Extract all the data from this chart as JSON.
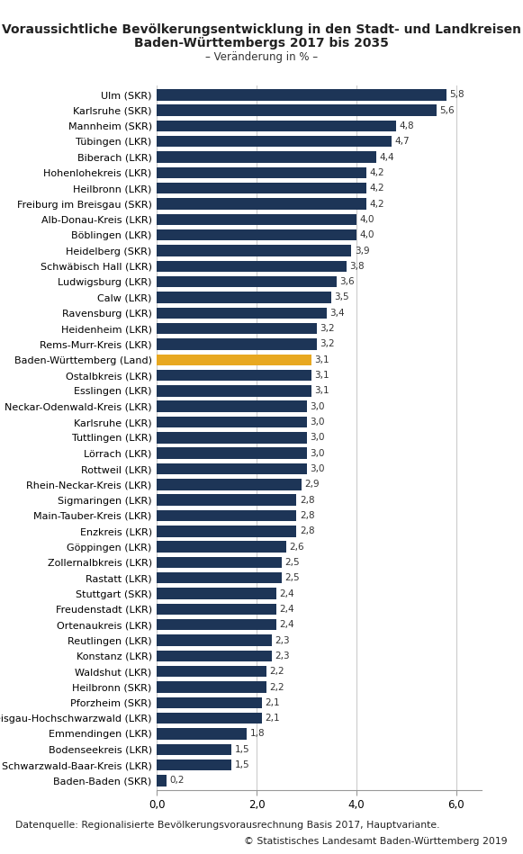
{
  "title_line1": "Voraussichtliche Bevölkerungsentwicklung in den Stadt- und Landkreisen",
  "title_line2": "Baden-Württembergs 2017 bis 2035",
  "subtitle": "– Veränderung in % –",
  "categories": [
    "Ulm (SKR)",
    "Karlsruhe (SKR)",
    "Mannheim (SKR)",
    "Tübingen (LKR)",
    "Biberach (LKR)",
    "Hohenlohekreis (LKR)",
    "Heilbronn (LKR)",
    "Freiburg im Breisgau (SKR)",
    "Alb-Donau-Kreis (LKR)",
    "Böblingen (LKR)",
    "Heidelberg (SKR)",
    "Schwäbisch Hall (LKR)",
    "Ludwigsburg (LKR)",
    "Calw (LKR)",
    "Ravensburg (LKR)",
    "Heidenheim (LKR)",
    "Rems-Murr-Kreis (LKR)",
    "Baden-Württemberg (Land)",
    "Ostalbkreis (LKR)",
    "Esslingen (LKR)",
    "Neckar-Odenwald-Kreis (LKR)",
    "Karlsruhe (LKR)",
    "Tuttlingen (LKR)",
    "Lörrach (LKR)",
    "Rottweil (LKR)",
    "Rhein-Neckar-Kreis (LKR)",
    "Sigmaringen (LKR)",
    "Main-Tauber-Kreis (LKR)",
    "Enzkreis (LKR)",
    "Göppingen (LKR)",
    "Zollernalbkreis (LKR)",
    "Rastatt (LKR)",
    "Stuttgart (SKR)",
    "Freudenstadt (LKR)",
    "Ortenaukreis (LKR)",
    "Reutlingen (LKR)",
    "Konstanz (LKR)",
    "Waldshut (LKR)",
    "Heilbronn (SKR)",
    "Pforzheim (SKR)",
    "Breisgau-Hochschwarzwald (LKR)",
    "Emmendingen (LKR)",
    "Bodenseekreis (LKR)",
    "Schwarzwald-Baar-Kreis (LKR)",
    "Baden-Baden (SKR)"
  ],
  "values": [
    5.8,
    5.6,
    4.8,
    4.7,
    4.4,
    4.2,
    4.2,
    4.2,
    4.0,
    4.0,
    3.9,
    3.8,
    3.6,
    3.5,
    3.4,
    3.2,
    3.2,
    3.1,
    3.1,
    3.1,
    3.0,
    3.0,
    3.0,
    3.0,
    3.0,
    2.9,
    2.8,
    2.8,
    2.8,
    2.6,
    2.5,
    2.5,
    2.4,
    2.4,
    2.4,
    2.3,
    2.3,
    2.2,
    2.2,
    2.1,
    2.1,
    1.8,
    1.5,
    1.5,
    0.2
  ],
  "bar_color_default": "#1d3557",
  "bar_color_highlight": "#e8a820",
  "highlight_index": 17,
  "xlim": [
    0,
    6.5
  ],
  "xticks": [
    0.0,
    2.0,
    4.0,
    6.0
  ],
  "xtick_labels": [
    "0,0",
    "2,0",
    "4,0",
    "6,0"
  ],
  "footnote1": "Datenquelle: Regionalisierte Bevölkerungsvorausrechnung Basis 2017, Hauptvariante.",
  "footnote2": "© Statistisches Landesamt Baden-Württemberg 2019",
  "background_color": "#ffffff",
  "grid_color": "#cccccc",
  "bar_label_fontsize": 7.5,
  "title_fontsize": 10,
  "subtitle_fontsize": 8.5,
  "ytick_fontsize": 8.0,
  "xtick_fontsize": 8.5,
  "footnote_fontsize": 7.8,
  "bar_height": 0.72
}
